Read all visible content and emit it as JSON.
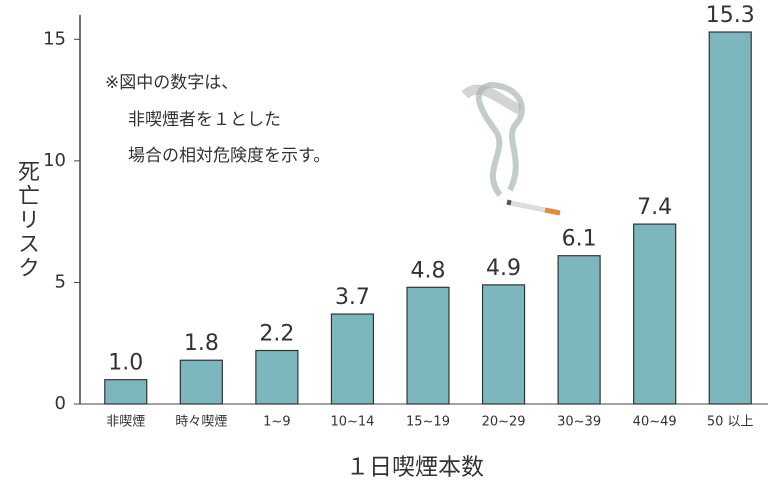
{
  "chart_data": {
    "type": "bar",
    "y_label": "死亡リスク",
    "x_label": "１日喫煙本数",
    "annotation": [
      "※図中の数字は、",
      "非喫煙者を１とした",
      "場合の相対危険度を示す。"
    ],
    "categories": [
      "非喫煙",
      "時々喫煙",
      "1~9",
      "10~14",
      "15~19",
      "20~29",
      "30~39",
      "40~49",
      "50 以上"
    ],
    "values": [
      1.0,
      1.8,
      2.2,
      3.7,
      4.8,
      4.9,
      6.1,
      7.4,
      15.3
    ],
    "value_labels": [
      "1.0",
      "1.8",
      "2.2",
      "3.7",
      "4.8",
      "4.9",
      "6.1",
      "7.4",
      "15.3"
    ],
    "color": "#7db7be",
    "ylim": [
      0,
      16
    ],
    "yticks": [
      0,
      5,
      10,
      15
    ]
  }
}
